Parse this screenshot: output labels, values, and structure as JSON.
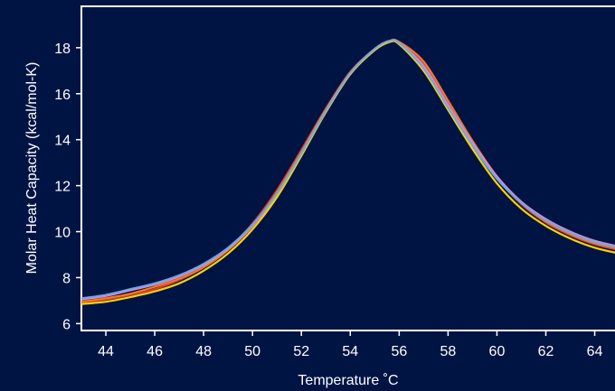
{
  "chart_data": {
    "type": "line",
    "title": "",
    "xlabel": "Temperature ˚C",
    "ylabel": "Molar Heat Capacity (kcal/mol-K)",
    "xlim": [
      43,
      65.2
    ],
    "ylim": [
      5.7,
      19.8
    ],
    "x_ticks": [
      44,
      46,
      48,
      50,
      52,
      54,
      56,
      58,
      60,
      62,
      64
    ],
    "y_ticks": [
      6,
      8,
      10,
      12,
      14,
      16,
      18
    ],
    "x_tick_labels": [
      "44",
      "46",
      "48",
      "50",
      "52",
      "54",
      "56",
      "58",
      "60",
      "62",
      "64"
    ],
    "y_tick_labels": [
      "6",
      "8",
      "10",
      "12",
      "14",
      "16",
      "18"
    ],
    "grid": false,
    "background": "#001444",
    "series": [
      {
        "color": "#e03a2f",
        "x": [
          43,
          44,
          45,
          46,
          47,
          48,
          49,
          50,
          51,
          52,
          53,
          54,
          55,
          55.6,
          56,
          57,
          58,
          59,
          60,
          61,
          62,
          63,
          64,
          65.2
        ],
        "y": [
          6.9,
          7.05,
          7.25,
          7.5,
          7.9,
          8.45,
          9.25,
          10.35,
          11.8,
          13.55,
          15.35,
          16.95,
          17.95,
          18.3,
          18.25,
          17.3,
          15.55,
          13.9,
          12.35,
          11.2,
          10.4,
          9.85,
          9.45,
          9.15
        ]
      },
      {
        "color": "#f07a2a",
        "x": [
          43,
          44,
          45,
          46,
          47,
          48,
          49,
          50,
          51,
          52,
          53,
          54,
          55,
          55.6,
          56,
          57,
          58,
          59,
          60,
          61,
          62,
          63,
          64,
          65.2
        ],
        "y": [
          6.95,
          7.1,
          7.3,
          7.6,
          7.95,
          8.45,
          9.2,
          10.25,
          11.7,
          13.45,
          15.3,
          16.9,
          17.9,
          18.25,
          18.25,
          17.4,
          15.7,
          13.95,
          12.4,
          11.25,
          10.45,
          9.9,
          9.5,
          9.2
        ]
      },
      {
        "color": "#d98ad6",
        "x": [
          43,
          44,
          45,
          46,
          47,
          48,
          49,
          50,
          51,
          52,
          53,
          54,
          55,
          55.6,
          56,
          57,
          58,
          59,
          60,
          61,
          62,
          63,
          64,
          65.2
        ],
        "y": [
          7.05,
          7.2,
          7.45,
          7.7,
          8.05,
          8.55,
          9.25,
          10.25,
          11.6,
          13.35,
          15.2,
          16.85,
          17.9,
          18.25,
          18.2,
          17.2,
          15.5,
          13.85,
          12.4,
          11.3,
          10.55,
          10.0,
          9.6,
          9.3
        ]
      },
      {
        "color": "#ffd200",
        "x": [
          43,
          44,
          45,
          46,
          47,
          48,
          49,
          50,
          51,
          52,
          53,
          54,
          55,
          55.6,
          56,
          57,
          58,
          59,
          60,
          61,
          62,
          63,
          64,
          65.2
        ],
        "y": [
          6.85,
          6.95,
          7.15,
          7.4,
          7.75,
          8.3,
          9.05,
          10.1,
          11.5,
          13.3,
          15.2,
          16.85,
          17.9,
          18.25,
          18.15,
          17.0,
          15.3,
          13.6,
          12.1,
          11.0,
          10.25,
          9.7,
          9.3,
          9.0
        ]
      },
      {
        "color": "#6ea8e8",
        "x": [
          43,
          44,
          45,
          46,
          47,
          48,
          49,
          50,
          51,
          52,
          53,
          54,
          55,
          55.6,
          56,
          57,
          58,
          59,
          60,
          61,
          62,
          63,
          64,
          65.2
        ],
        "y": [
          7.1,
          7.25,
          7.5,
          7.75,
          8.1,
          8.6,
          9.3,
          10.3,
          11.65,
          13.4,
          15.25,
          16.9,
          17.95,
          18.3,
          18.2,
          17.1,
          15.4,
          13.75,
          12.3,
          11.25,
          10.5,
          9.95,
          9.55,
          9.25
        ]
      }
    ]
  }
}
